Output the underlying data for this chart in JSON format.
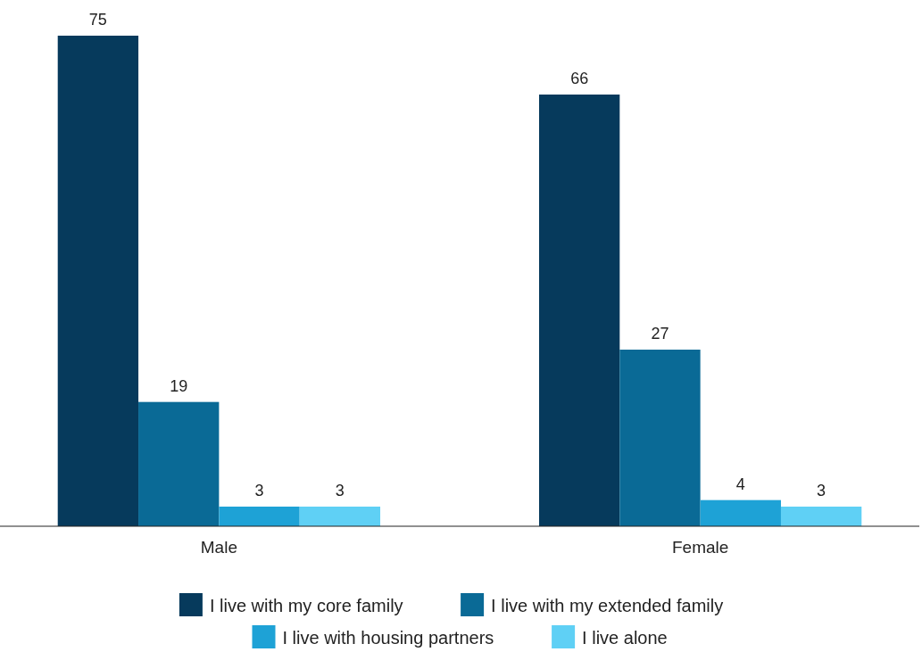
{
  "chart_data": {
    "type": "bar",
    "categories": [
      "Male",
      "Female"
    ],
    "series": [
      {
        "name": "I live with my core family",
        "color": "#063a5c",
        "values": [
          75,
          66
        ]
      },
      {
        "name": "I live with my extended family",
        "color": "#0a6a96",
        "values": [
          19,
          27
        ]
      },
      {
        "name": "I live with housing partners",
        "color": "#1ea2d6",
        "values": [
          3,
          4
        ]
      },
      {
        "name": "I live alone",
        "color": "#5fd0f5",
        "values": [
          3,
          3
        ]
      }
    ],
    "data_labels": true,
    "legend": "bottom"
  }
}
